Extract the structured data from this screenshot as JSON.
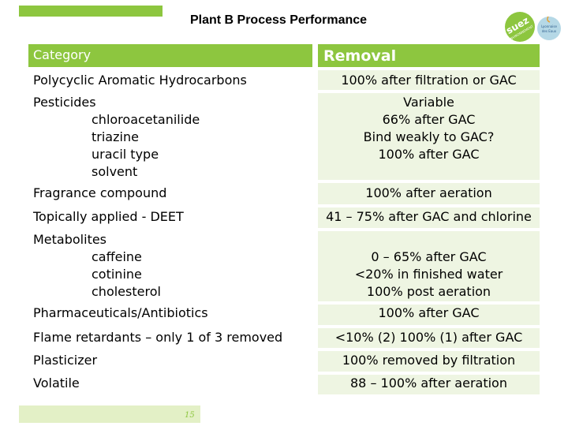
{
  "title": "Plant B Process Performance",
  "logo": {
    "brand": "suez",
    "tagline": "ENVIRONNEMENT",
    "badge_lines": [
      "Lyonnaise",
      "des Eaux"
    ]
  },
  "table": {
    "header_category": "Category",
    "header_removal": "Removal",
    "rows": [
      {
        "category": [
          "Polycyclic  Aromatic  Hydrocarbons"
        ],
        "removal": [
          "100% after filtration or GAC"
        ]
      },
      {
        "category": [
          "Pesticides",
          "chloroacetanilide",
          "triazine",
          "uracil type",
          "solvent"
        ],
        "removal": [
          "Variable",
          "66% after GAC",
          "Bind weakly to GAC?",
          "100% after GAC"
        ]
      },
      {
        "category": [
          "Fragrance compound"
        ],
        "removal": [
          "100% after aeration"
        ]
      },
      {
        "category": [
          "Topically applied - DEET"
        ],
        "removal": [
          "41 – 75% after GAC and chlorine"
        ]
      },
      {
        "category": [
          "Metabolites",
          "caffeine",
          "cotinine",
          "cholesterol"
        ],
        "removal": [
          "0 – 65% after GAC",
          "<20% in finished water",
          "100% post aeration"
        ]
      },
      {
        "category": [
          "Pharmaceuticals/Antibiotics"
        ],
        "removal": [
          "100% after GAC"
        ]
      },
      {
        "category": [
          "Flame retardants – only 1 of 3 removed"
        ],
        "removal": [
          "<10% (2) 100% (1) after GAC"
        ]
      },
      {
        "category": [
          "Plasticizer"
        ],
        "removal": [
          "100% removed by filtration"
        ]
      },
      {
        "category": [
          "Volatile"
        ],
        "removal": [
          "88 – 100% after aeration"
        ]
      }
    ]
  },
  "page_number": "15",
  "colors": {
    "accent": "#8dc63f",
    "band": "#eef5e2",
    "footer": "#e3f0c6",
    "badge": "#b5d8e6"
  }
}
